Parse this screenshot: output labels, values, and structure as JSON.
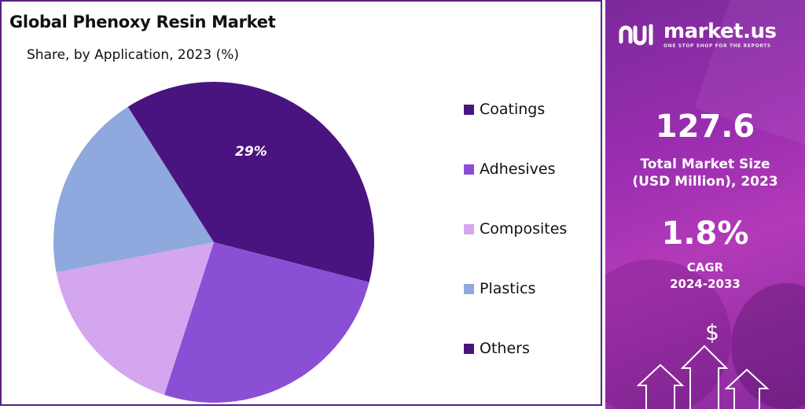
{
  "header": {
    "title": "Global Phenoxy Resin Market",
    "subtitle": "Share, by Application, 2023 (%)"
  },
  "chart_data": {
    "type": "pie",
    "title": "Global Phenoxy Resin Market",
    "subtitle": "Share, by Application, 2023 (%)",
    "categories": [
      "Coatings",
      "Adhesives",
      "Composites",
      "Plastics",
      "Others"
    ],
    "values": [
      29,
      26,
      17,
      19,
      9
    ],
    "data_labels": [
      "29%",
      "",
      "",
      "",
      ""
    ],
    "colors": [
      "#4a1480",
      "#8a4fd4",
      "#d4a6ef",
      "#8fa8dd",
      "#4a1480"
    ],
    "legend_placement": "right"
  },
  "legend": {
    "items": [
      {
        "label": "Coatings",
        "color": "#4a1480"
      },
      {
        "label": "Adhesives",
        "color": "#8a4fd4"
      },
      {
        "label": "Composites",
        "color": "#d4a6ef"
      },
      {
        "label": "Plastics",
        "color": "#8fa8dd"
      },
      {
        "label": "Others",
        "color": "#4a1480"
      }
    ]
  },
  "sidebar": {
    "brand_name": "market.us",
    "brand_tagline": "ONE STOP SHOP FOR THE REPORTS",
    "market_size_value": "127.6",
    "market_size_label_line1": "Total Market Size",
    "market_size_label_line2": "(USD Million), 2023",
    "cagr_value": "1.8%",
    "cagr_label_line1": "CAGR",
    "cagr_label_line2": "2024-2033",
    "dollar_symbol": "$"
  },
  "icons": [
    "marketus-logo-icon",
    "dollar-icon",
    "growth-arrows-icon"
  ]
}
